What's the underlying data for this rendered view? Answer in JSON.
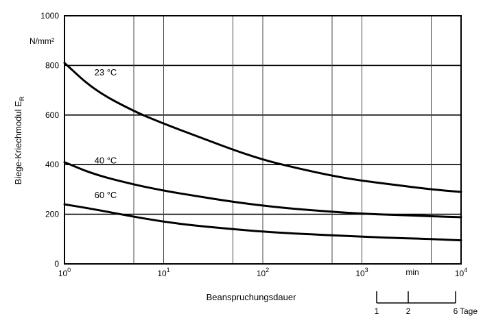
{
  "chart_data": {
    "type": "line",
    "xscale": "log",
    "xlim": [
      1,
      10000
    ],
    "ylim": [
      0,
      1000
    ],
    "grid": true,
    "xlabel": "Beanspruchungsdauer",
    "ylabel": "Biege-Kriechmodul E",
    "ylabel_sub": "R",
    "yunit": "N/mm²",
    "xunit": "min",
    "yticks": [
      0,
      200,
      400,
      600,
      800,
      1000
    ],
    "yticks_labels": [
      "0",
      "200",
      "400",
      "600",
      "800",
      "1000"
    ],
    "xticks": [
      1,
      10,
      100,
      1000,
      10000
    ],
    "xticks_base": "10",
    "xticks_exp": [
      "0",
      "1",
      "2",
      "3",
      "4"
    ],
    "series": [
      {
        "name": "23 °C",
        "x": [
          1,
          2,
          5,
          10,
          20,
          50,
          100,
          200,
          500,
          1000,
          2000,
          5000,
          10000
        ],
        "values": [
          810,
          700,
          615,
          565,
          520,
          460,
          420,
          390,
          355,
          335,
          320,
          300,
          290
        ]
      },
      {
        "name": "40 °C",
        "x": [
          1,
          2,
          5,
          10,
          20,
          50,
          100,
          200,
          500,
          1000,
          2000,
          5000,
          10000
        ],
        "values": [
          410,
          360,
          320,
          295,
          275,
          250,
          235,
          222,
          210,
          202,
          198,
          192,
          188
        ]
      },
      {
        "name": "60 °C",
        "x": [
          1,
          2,
          5,
          10,
          20,
          50,
          100,
          200,
          500,
          1000,
          2000,
          5000,
          10000
        ],
        "values": [
          240,
          220,
          190,
          170,
          155,
          140,
          130,
          123,
          115,
          110,
          105,
          100,
          95
        ]
      }
    ],
    "secondary_scale": {
      "labels": [
        "1",
        "2",
        "6"
      ],
      "unit": "Tage"
    }
  }
}
